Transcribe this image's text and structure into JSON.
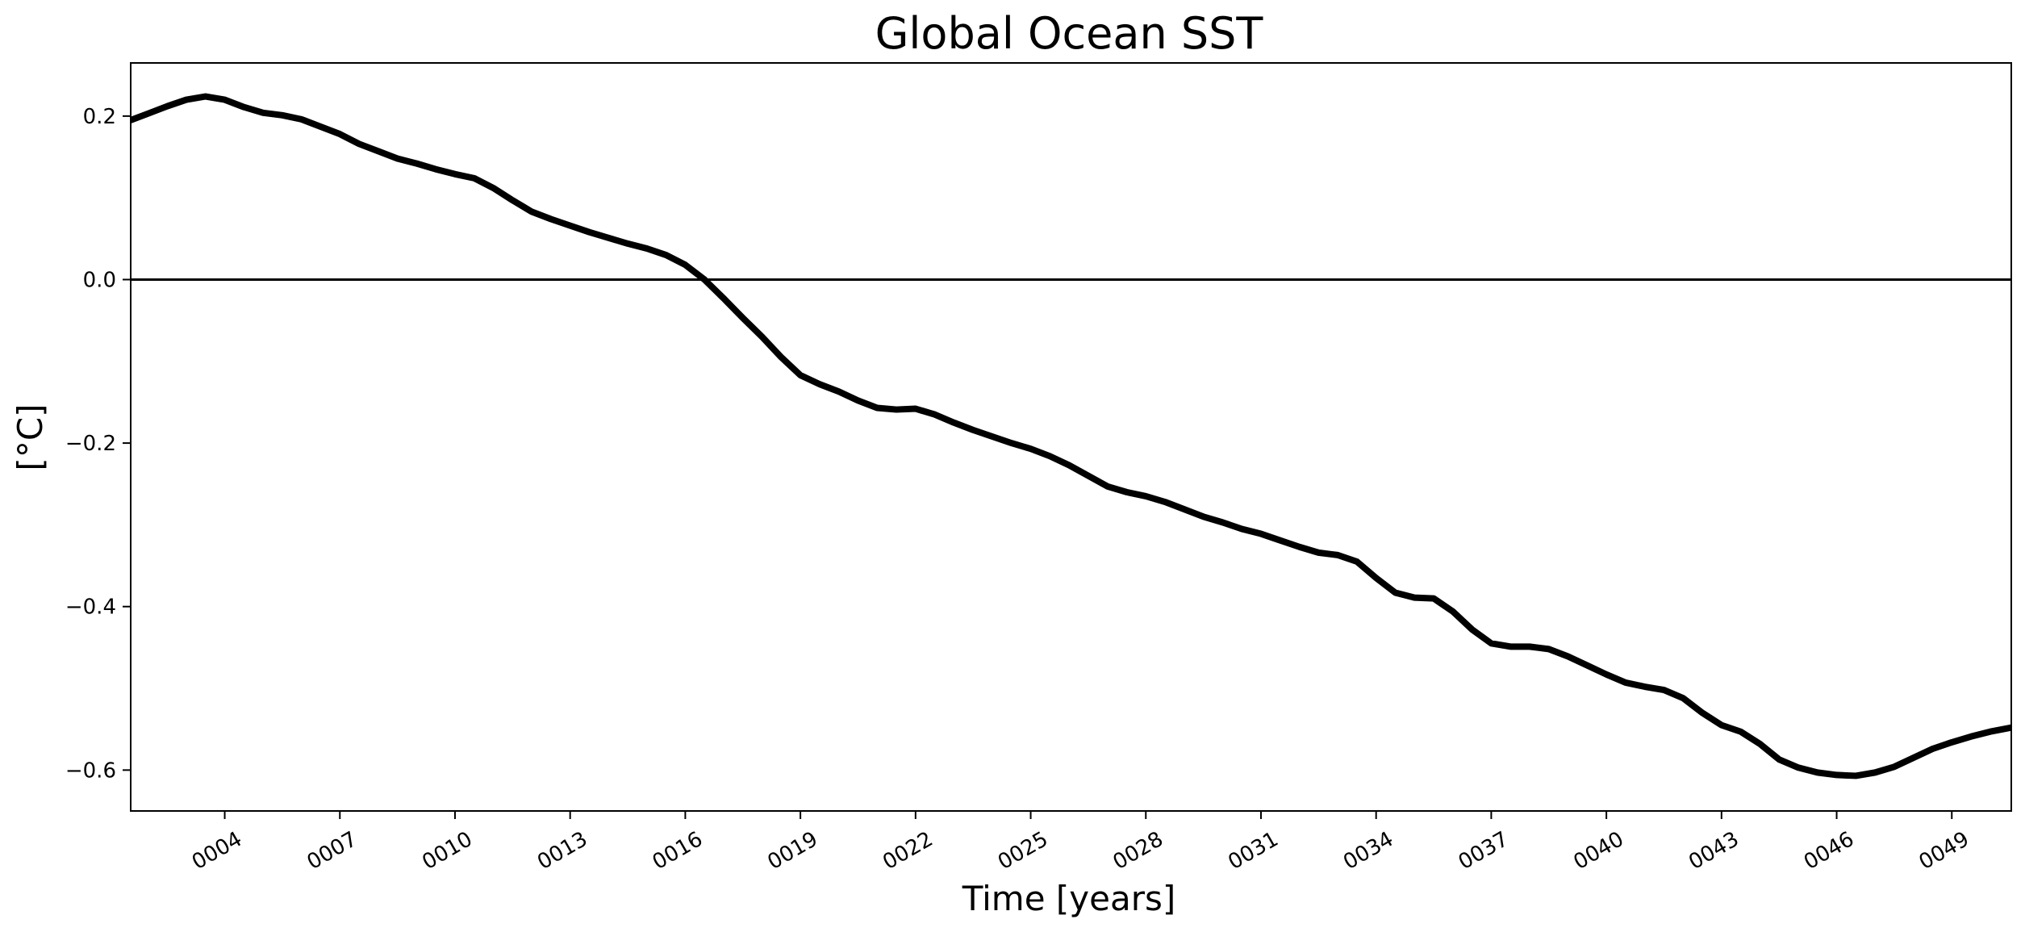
{
  "chart_data": {
    "type": "line",
    "title": "Global Ocean SST",
    "xlabel": "Time [years]",
    "ylabel": "[°C]",
    "ylim": [
      -0.65,
      0.265
    ],
    "xlim": [
      1.55,
      50.55
    ],
    "zero_line": true,
    "grid": false,
    "legend": "none",
    "line_color": "#000000",
    "x_ticks": [
      {
        "value": 4,
        "label": "0004"
      },
      {
        "value": 7,
        "label": "0007"
      },
      {
        "value": 10,
        "label": "0010"
      },
      {
        "value": 13,
        "label": "0013"
      },
      {
        "value": 16,
        "label": "0016"
      },
      {
        "value": 19,
        "label": "0019"
      },
      {
        "value": 22,
        "label": "0022"
      },
      {
        "value": 25,
        "label": "0025"
      },
      {
        "value": 28,
        "label": "0028"
      },
      {
        "value": 31,
        "label": "0031"
      },
      {
        "value": 34,
        "label": "0034"
      },
      {
        "value": 37,
        "label": "0037"
      },
      {
        "value": 40,
        "label": "0040"
      },
      {
        "value": 43,
        "label": "0043"
      },
      {
        "value": 46,
        "label": "0046"
      },
      {
        "value": 49,
        "label": "0049"
      }
    ],
    "y_ticks": [
      {
        "value": 0.2,
        "label": "0.2"
      },
      {
        "value": 0.0,
        "label": "0.0"
      },
      {
        "value": -0.2,
        "label": "−0.2"
      },
      {
        "value": -0.4,
        "label": "−0.4"
      },
      {
        "value": -0.6,
        "label": "−0.6"
      }
    ],
    "series": [
      {
        "x": [
          1.55,
          2.0,
          2.5,
          3.0,
          3.5,
          4.0,
          4.5,
          5.0,
          5.5,
          6.0,
          6.5,
          7.0,
          7.5,
          8.0,
          8.5,
          9.0,
          9.5,
          10.0,
          10.5,
          11.0,
          11.5,
          12.0,
          12.5,
          13.0,
          13.5,
          14.0,
          14.5,
          15.0,
          15.5,
          16.0,
          16.5,
          17.0,
          17.5,
          18.0,
          18.5,
          19.0,
          19.5,
          20.0,
          20.5,
          21.0,
          21.5,
          22.0,
          22.5,
          23.0,
          23.5,
          24.0,
          24.5,
          25.0,
          25.5,
          26.0,
          26.5,
          27.0,
          27.5,
          28.0,
          28.5,
          29.0,
          29.5,
          30.0,
          30.5,
          31.0,
          31.5,
          32.0,
          32.5,
          33.0,
          33.5,
          34.0,
          34.5,
          35.0,
          35.5,
          36.0,
          36.5,
          37.0,
          37.5,
          38.0,
          38.5,
          39.0,
          39.5,
          40.0,
          40.5,
          41.0,
          41.5,
          42.0,
          42.5,
          43.0,
          43.5,
          44.0,
          44.5,
          45.0,
          45.5,
          46.0,
          46.5,
          47.0,
          47.5,
          48.0,
          48.5,
          49.0,
          49.5,
          50.0,
          50.55
        ],
        "y": [
          0.195,
          0.203,
          0.212,
          0.22,
          0.224,
          0.22,
          0.211,
          0.204,
          0.201,
          0.196,
          0.187,
          0.178,
          0.166,
          0.157,
          0.148,
          0.142,
          0.135,
          0.129,
          0.124,
          0.112,
          0.097,
          0.083,
          0.074,
          0.066,
          0.058,
          0.051,
          0.044,
          0.038,
          0.03,
          0.018,
          0.0,
          -0.023,
          -0.047,
          -0.07,
          -0.095,
          -0.117,
          -0.128,
          -0.137,
          -0.148,
          -0.157,
          -0.159,
          -0.158,
          -0.165,
          -0.175,
          -0.184,
          -0.192,
          -0.2,
          -0.207,
          -0.216,
          -0.227,
          -0.24,
          -0.253,
          -0.26,
          -0.265,
          -0.272,
          -0.281,
          -0.29,
          -0.297,
          -0.305,
          -0.311,
          -0.319,
          -0.327,
          -0.334,
          -0.337,
          -0.345,
          -0.365,
          -0.383,
          -0.389,
          -0.39,
          -0.406,
          -0.428,
          -0.445,
          -0.449,
          -0.449,
          -0.452,
          -0.461,
          -0.472,
          -0.483,
          -0.493,
          -0.498,
          -0.502,
          -0.512,
          -0.53,
          -0.545,
          -0.553,
          -0.568,
          -0.587,
          -0.597,
          -0.603,
          -0.606,
          -0.607,
          -0.603,
          -0.596,
          -0.585,
          -0.574,
          -0.566,
          -0.559,
          -0.553,
          -0.548
        ]
      }
    ]
  }
}
